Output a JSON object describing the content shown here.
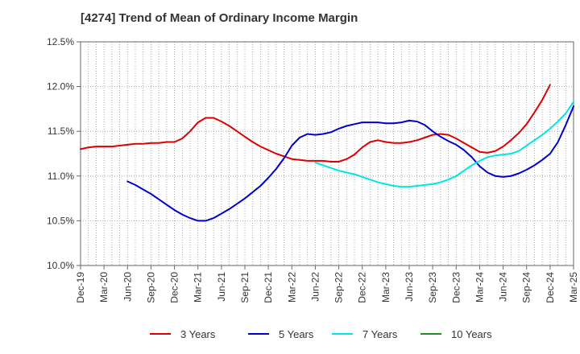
{
  "chart_data": {
    "type": "line",
    "title": "[4274]  Trend of Mean of Ordinary Income Margin",
    "xlabel": "",
    "ylabel": "",
    "ylim": [
      10.0,
      12.5
    ],
    "y_ticks": [
      "10.0%",
      "10.5%",
      "11.0%",
      "11.5%",
      "12.0%",
      "12.5%"
    ],
    "y_tick_values": [
      10.0,
      10.5,
      11.0,
      11.5,
      12.0,
      12.5
    ],
    "x_ticks": [
      "Dec-19",
      "Mar-20",
      "Jun-20",
      "Sep-20",
      "Dec-20",
      "Mar-21",
      "Jun-21",
      "Sep-21",
      "Dec-21",
      "Mar-22",
      "Jun-22",
      "Sep-22",
      "Dec-22",
      "Mar-23",
      "Jun-23",
      "Sep-23",
      "Dec-23",
      "Mar-24",
      "Jun-24",
      "Sep-24",
      "Dec-24",
      "Mar-25"
    ],
    "grid": true,
    "legend_position": "bottom",
    "series": [
      {
        "name": "3 Years",
        "color": "#dd0000",
        "start_month": 0,
        "values": [
          11.3,
          11.32,
          11.33,
          11.33,
          11.33,
          11.34,
          11.35,
          11.36,
          11.36,
          11.37,
          11.37,
          11.38,
          11.38,
          11.42,
          11.5,
          11.6,
          11.65,
          11.65,
          11.61,
          11.56,
          11.5,
          11.44,
          11.38,
          11.33,
          11.29,
          11.25,
          11.22,
          11.19,
          11.18,
          11.17,
          11.17,
          11.17,
          11.16,
          11.16,
          11.19,
          11.24,
          11.32,
          11.38,
          11.4,
          11.38,
          11.37,
          11.37,
          11.38,
          11.4,
          11.43,
          11.46,
          11.47,
          11.46,
          11.42,
          11.37,
          11.32,
          11.27,
          11.26,
          11.28,
          11.33,
          11.4,
          11.48,
          11.58,
          11.71,
          11.85,
          12.02
        ]
      },
      {
        "name": "5 Years",
        "color": "#0000cc",
        "start_month": 6,
        "values": [
          10.94,
          10.9,
          10.85,
          10.8,
          10.74,
          10.68,
          10.62,
          10.57,
          10.53,
          10.5,
          10.5,
          10.53,
          10.58,
          10.63,
          10.69,
          10.75,
          10.82,
          10.89,
          10.98,
          11.08,
          11.2,
          11.34,
          11.43,
          11.47,
          11.46,
          11.47,
          11.49,
          11.53,
          11.56,
          11.58,
          11.6,
          11.6,
          11.6,
          11.59,
          11.59,
          11.6,
          11.62,
          11.61,
          11.57,
          11.5,
          11.44,
          11.39,
          11.35,
          11.29,
          11.21,
          11.11,
          11.04,
          11.0,
          10.99,
          11.0,
          11.03,
          11.07,
          11.12,
          11.18,
          11.25,
          11.38,
          11.57,
          11.78
        ]
      },
      {
        "name": "7 Years",
        "color": "#00e5e5",
        "start_month": 30,
        "values": [
          11.15,
          11.12,
          11.09,
          11.06,
          11.04,
          11.02,
          10.99,
          10.96,
          10.93,
          10.91,
          10.89,
          10.88,
          10.88,
          10.89,
          10.9,
          10.91,
          10.93,
          10.96,
          11.0,
          11.06,
          11.12,
          11.17,
          11.21,
          11.23,
          11.24,
          11.25,
          11.28,
          11.34,
          11.4,
          11.46,
          11.53,
          11.61,
          11.7,
          11.83
        ]
      },
      {
        "name": "10 Years",
        "color": "#228b22",
        "start_month": null,
        "values": []
      }
    ]
  }
}
